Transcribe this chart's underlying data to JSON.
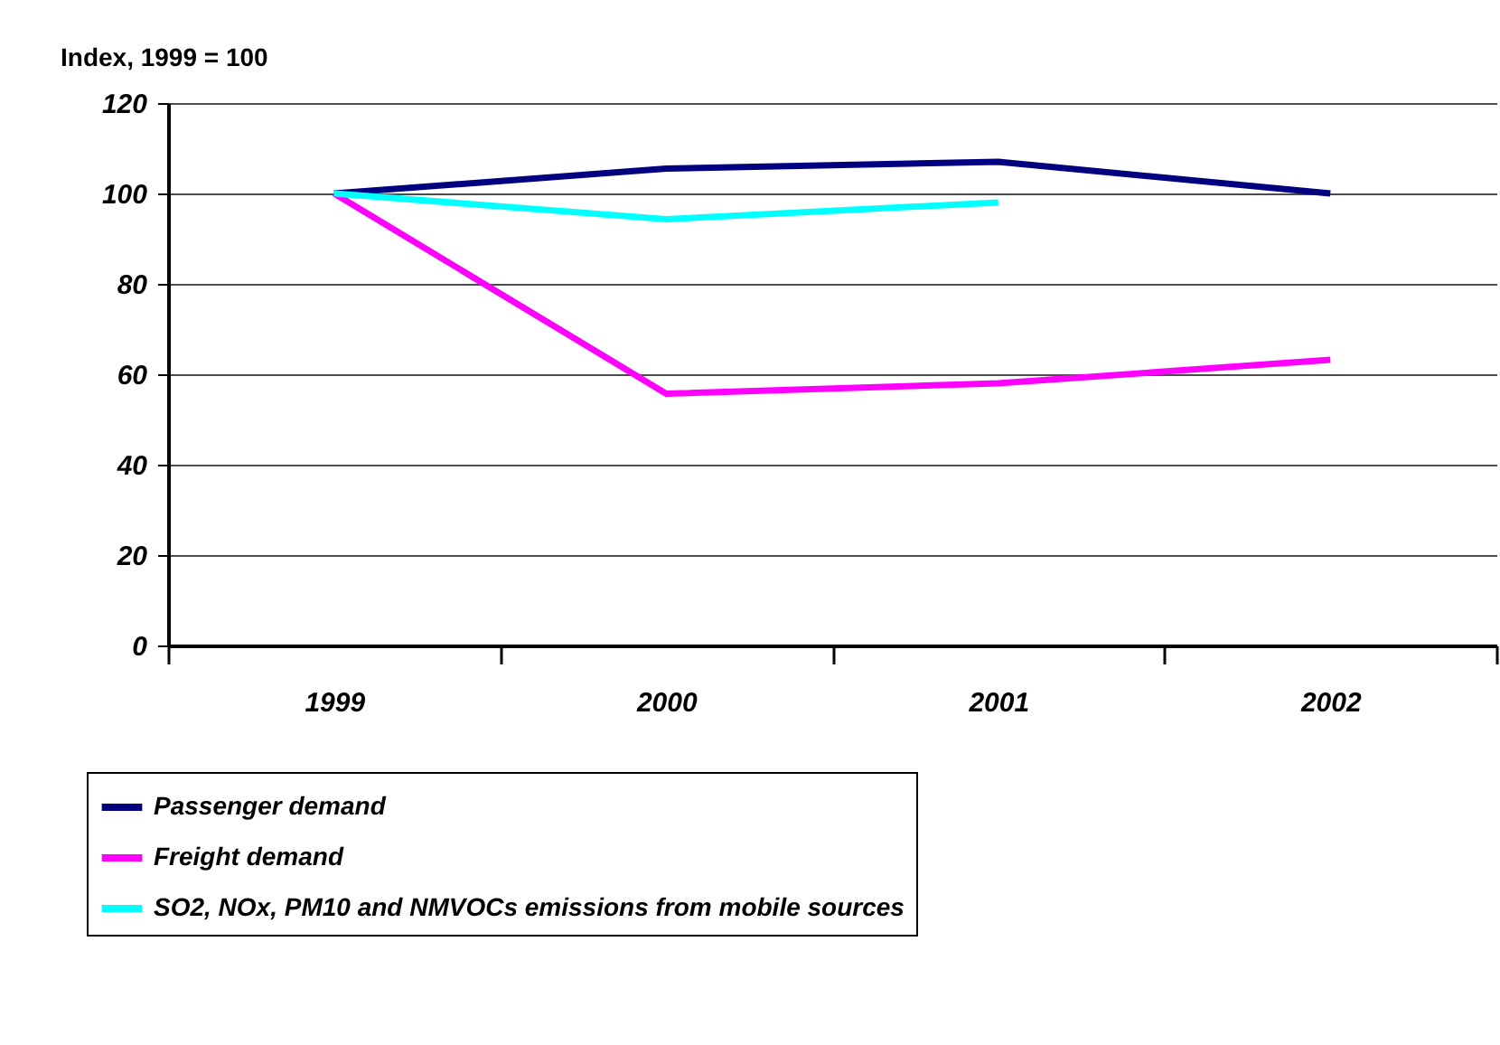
{
  "chart_data": {
    "type": "line",
    "ylabel": "Index, 1999 = 100",
    "categories": [
      "1999",
      "2000",
      "2001",
      "2002"
    ],
    "series": [
      {
        "name": "Passenger demand",
        "color": "#000080",
        "values": [
          100,
          105.5,
          107,
          100
        ]
      },
      {
        "name": "Freight demand",
        "color": "#ff00ff",
        "values": [
          100,
          55.7,
          58,
          63.2
        ]
      },
      {
        "name": "SO2, NOx, PM10 and NMVOCs emissions from mobile sources",
        "color": "#00ffff",
        "values": [
          100,
          94.3,
          98,
          null
        ]
      }
    ],
    "ylim": [
      0,
      120
    ],
    "yticks": [
      0,
      20,
      40,
      60,
      80,
      100,
      120
    ],
    "grid": "y",
    "legend": "bottom",
    "marker": "none",
    "line_style": "solid"
  }
}
